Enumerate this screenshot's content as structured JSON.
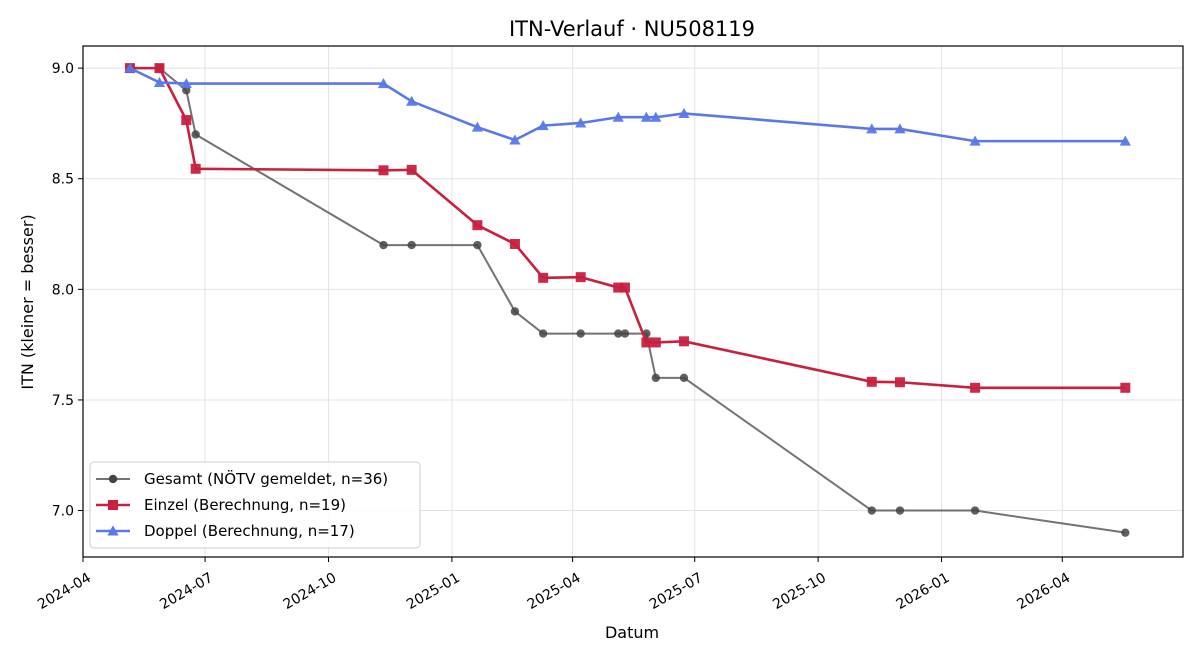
{
  "chart_data": {
    "type": "line",
    "title": "ITN-Verlauf · NU508119",
    "xlabel": "Datum",
    "ylabel": "ITN  (kleiner = besser)",
    "xlim": [
      "2024-04-01",
      "2026-06-30"
    ],
    "ylim": [
      6.79,
      9.1
    ],
    "x_ticks": [
      "2024-04",
      "2024-07",
      "2024-10",
      "2025-01",
      "2025-04",
      "2025-07",
      "2025-10",
      "2026-01",
      "2026-04"
    ],
    "y_ticks": [
      "7.0",
      "7.5",
      "8.0",
      "8.5",
      "9.0"
    ],
    "grid": true,
    "legend_position": "lower-left",
    "series": [
      {
        "name": "Gesamt (NÖTV gemeldet, n=36)",
        "color": "#444444",
        "marker": "circle",
        "points": [
          [
            "2024-05-06",
            9.0
          ],
          [
            "2024-05-28",
            9.0
          ],
          [
            "2024-06-17",
            8.9
          ],
          [
            "2024-06-24",
            8.7
          ],
          [
            "2024-11-11",
            8.2
          ],
          [
            "2024-12-02",
            8.2
          ],
          [
            "2025-01-20",
            8.2
          ],
          [
            "2025-02-17",
            7.9
          ],
          [
            "2025-03-10",
            7.8
          ],
          [
            "2025-04-07",
            7.8
          ],
          [
            "2025-05-05",
            7.8
          ],
          [
            "2025-05-10",
            7.8
          ],
          [
            "2025-05-26",
            7.8
          ],
          [
            "2025-06-02",
            7.6
          ],
          [
            "2025-06-23",
            7.6
          ],
          [
            "2025-11-10",
            7.0
          ],
          [
            "2025-12-01",
            7.0
          ],
          [
            "2026-01-26",
            7.0
          ],
          [
            "2026-05-18",
            6.9
          ]
        ]
      },
      {
        "name": "Einzel (Berechnung, n=19)",
        "color": "#c8203f",
        "marker": "square",
        "points": [
          [
            "2024-05-06",
            9.0
          ],
          [
            "2024-05-28",
            9.0
          ],
          [
            "2024-06-17",
            8.765
          ],
          [
            "2024-06-24",
            8.545
          ],
          [
            "2024-11-11",
            8.538
          ],
          [
            "2024-12-02",
            8.54
          ],
          [
            "2025-01-20",
            8.29
          ],
          [
            "2025-02-17",
            8.205
          ],
          [
            "2025-03-10",
            8.052
          ],
          [
            "2025-04-07",
            8.055
          ],
          [
            "2025-05-05",
            8.008
          ],
          [
            "2025-05-10",
            8.008
          ],
          [
            "2025-05-26",
            7.76
          ],
          [
            "2025-06-02",
            7.76
          ],
          [
            "2025-06-23",
            7.765
          ],
          [
            "2025-11-10",
            7.582
          ],
          [
            "2025-12-01",
            7.58
          ],
          [
            "2026-01-26",
            7.555
          ],
          [
            "2026-05-18",
            7.555
          ]
        ]
      },
      {
        "name": "Doppel (Berechnung, n=17)",
        "color": "#5a78e8",
        "marker": "triangle",
        "points": [
          [
            "2024-05-06",
            9.0
          ],
          [
            "2024-05-28",
            8.935
          ],
          [
            "2024-06-17",
            8.93
          ],
          [
            "2024-11-11",
            8.93
          ],
          [
            "2024-12-02",
            8.85
          ],
          [
            "2025-01-20",
            8.733
          ],
          [
            "2025-02-17",
            8.675
          ],
          [
            "2025-03-10",
            8.74
          ],
          [
            "2025-04-07",
            8.752
          ],
          [
            "2025-05-05",
            8.778
          ],
          [
            "2025-05-26",
            8.778
          ],
          [
            "2025-06-02",
            8.778
          ],
          [
            "2025-06-23",
            8.795
          ],
          [
            "2025-11-10",
            8.725
          ],
          [
            "2025-12-01",
            8.725
          ],
          [
            "2026-01-26",
            8.67
          ],
          [
            "2026-05-18",
            8.67
          ]
        ]
      }
    ]
  }
}
